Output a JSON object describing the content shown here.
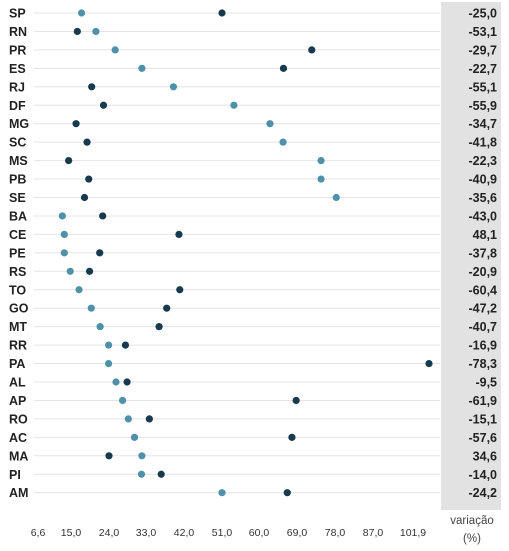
{
  "chart_data": {
    "type": "scatter",
    "x_ticks": [
      "6,6",
      "15,0",
      "24,0",
      "33,0",
      "42,0",
      "51,0",
      "60,0",
      "69,0",
      "78,0",
      "87,0",
      "101,9"
    ],
    "x_unit_label_1": "variação",
    "x_unit_label_2": "(%)",
    "grid": "horizontal",
    "colors": {
      "dark": "#173a4e",
      "light": "#4f91a8",
      "panel": "#e2e2e2",
      "grid": "#e4e4e4"
    },
    "rows": [
      {
        "state": "SP",
        "dark": 51.0,
        "light": 17.5,
        "variation": "-25,0"
      },
      {
        "state": "RN",
        "dark": 16.5,
        "light": 20.9,
        "variation": "-53,1"
      },
      {
        "state": "PR",
        "dark": 72.5,
        "light": 25.5,
        "variation": "-29,7"
      },
      {
        "state": "ES",
        "dark": 65.8,
        "light": 32.0,
        "variation": "-22,7"
      },
      {
        "state": "RJ",
        "dark": 19.9,
        "light": 39.5,
        "variation": "-55,1"
      },
      {
        "state": "DF",
        "dark": 22.7,
        "light": 53.9,
        "variation": "-55,9"
      },
      {
        "state": "MG",
        "dark": 16.2,
        "light": 62.6,
        "variation": "-34,7"
      },
      {
        "state": "SC",
        "dark": 18.8,
        "light": 65.7,
        "variation": "-41,8"
      },
      {
        "state": "MS",
        "dark": 14.4,
        "light": 74.7,
        "variation": "-22,3"
      },
      {
        "state": "PB",
        "dark": 19.2,
        "light": 74.7,
        "variation": "-40,9"
      },
      {
        "state": "SE",
        "dark": 18.2,
        "light": 78.3,
        "variation": "-35,6"
      },
      {
        "state": "BA",
        "dark": 22.5,
        "light": 12.8,
        "variation": "-43,0"
      },
      {
        "state": "CE",
        "dark": 40.8,
        "light": 13.3,
        "variation": "48,1"
      },
      {
        "state": "PE",
        "dark": 21.8,
        "light": 13.3,
        "variation": "-37,8"
      },
      {
        "state": "RS",
        "dark": 19.4,
        "light": 14.8,
        "variation": "-20,9"
      },
      {
        "state": "TO",
        "dark": 41.0,
        "light": 16.9,
        "variation": "-60,4"
      },
      {
        "state": "GO",
        "dark": 37.9,
        "light": 19.8,
        "variation": "-47,2"
      },
      {
        "state": "MT",
        "dark": 36.1,
        "light": 21.9,
        "variation": "-40,7"
      },
      {
        "state": "RR",
        "dark": 28.0,
        "light": 23.9,
        "variation": "-16,9"
      },
      {
        "state": "PA",
        "dark": 109.1,
        "light": 23.9,
        "variation": "-78,3"
      },
      {
        "state": "AL",
        "dark": 28.4,
        "light": 25.7,
        "variation": "-9,5"
      },
      {
        "state": "AP",
        "dark": 68.8,
        "light": 27.3,
        "variation": "-61,9"
      },
      {
        "state": "RO",
        "dark": 33.8,
        "light": 28.7,
        "variation": "-15,1"
      },
      {
        "state": "AC",
        "dark": 67.8,
        "light": 30.2,
        "variation": "-57,6"
      },
      {
        "state": "MA",
        "dark": 24.0,
        "light": 32.0,
        "variation": "34,6"
      },
      {
        "state": "PI",
        "dark": 36.6,
        "light": 31.9,
        "variation": "-14,0"
      },
      {
        "state": "AM",
        "dark": 66.7,
        "light": 51.0,
        "variation": "-24,2"
      }
    ]
  }
}
